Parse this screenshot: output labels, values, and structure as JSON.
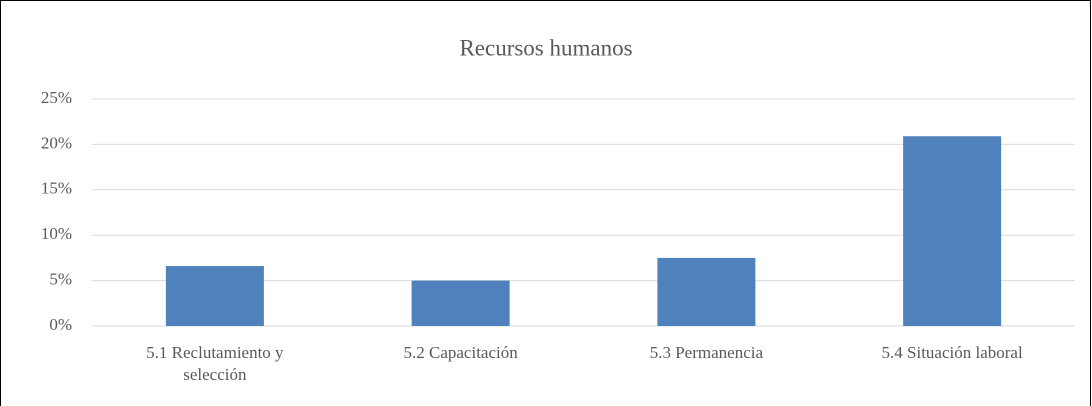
{
  "chart_data": {
    "type": "bar",
    "title": "Recursos humanos",
    "categories": [
      "5.1 Reclutamiento y selección",
      "5.2 Capacitación",
      "5.3 Permanencia",
      "5.4 Situación laboral"
    ],
    "values": [
      6.6,
      5.0,
      7.5,
      20.9
    ],
    "color": "#4f81bd",
    "ylim": [
      0,
      25
    ],
    "yticks": [
      {
        "value": 0,
        "label": "0%"
      },
      {
        "value": 5,
        "label": "5%"
      },
      {
        "value": 10,
        "label": "10%"
      },
      {
        "value": 15,
        "label": "15%"
      },
      {
        "value": 20,
        "label": "20%"
      },
      {
        "value": 25,
        "label": "25%"
      }
    ],
    "grid": true
  }
}
